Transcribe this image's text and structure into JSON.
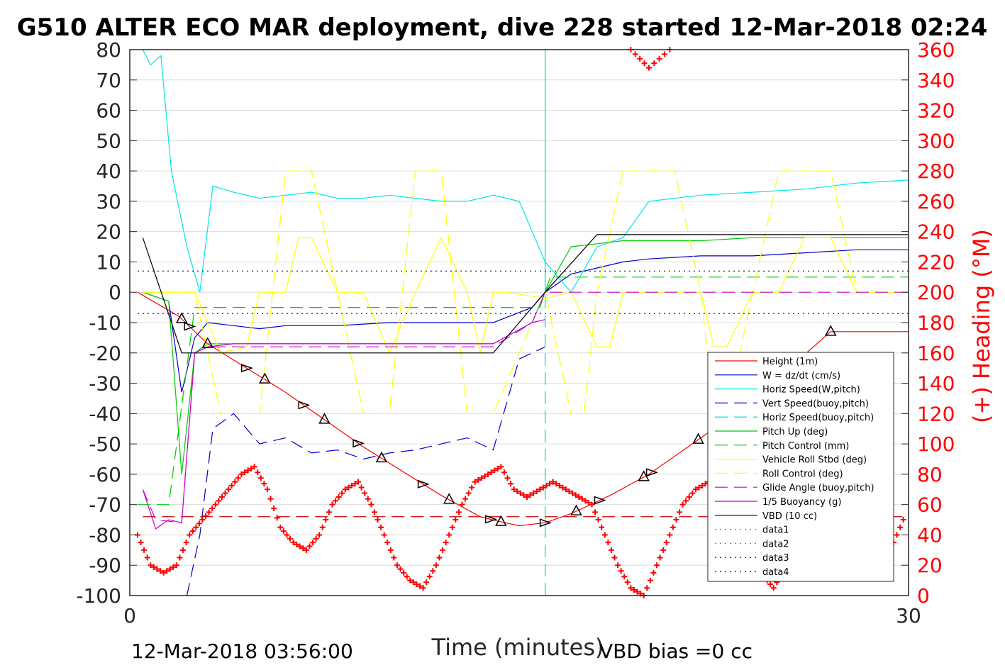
{
  "chart_data": {
    "type": "line",
    "title": "G510 ALTER ECO MAR deployment, dive 228 started 12-Mar-2018 02:24",
    "xlabel": "Time (minutes)",
    "ylabel": "",
    "ylabel_right": "(+) Heading (°M)",
    "xlim": [
      0,
      30
    ],
    "ylim": [
      -100,
      80
    ],
    "ylim_right": [
      0,
      360
    ],
    "x_ticks": [
      0,
      30
    ],
    "y_ticks": [
      80,
      70,
      60,
      50,
      40,
      30,
      20,
      10,
      0,
      -10,
      -20,
      -30,
      -40,
      -50,
      -60,
      -70,
      -80,
      -90,
      -100
    ],
    "y_ticks_right": [
      360,
      340,
      320,
      300,
      280,
      260,
      240,
      220,
      200,
      180,
      160,
      140,
      120,
      100,
      80,
      60,
      40,
      20,
      0
    ],
    "grid": true,
    "legend_position": "lower-right",
    "footer_left": "12-Mar-2018 03:56:00",
    "footer_right": "VBD bias =0 cc",
    "series": [
      {
        "name": "Height (1m)",
        "color": "#ff0000",
        "style": "solid",
        "x": [
          0.3,
          1.9,
          3.0,
          4.5,
          6.0,
          7.5,
          9.0,
          10.5,
          12.0,
          13.5,
          14.2,
          15.0,
          16.0,
          17.0,
          18.5,
          20.0,
          21.5,
          23.0,
          24.5,
          25.8,
          27.0,
          30.0
        ],
        "y": [
          0,
          -8,
          -17,
          -25,
          -33,
          -42,
          -51,
          -59,
          -67,
          -74,
          -75.5,
          -77,
          -76,
          -73,
          -67,
          -60,
          -51,
          -42,
          -32,
          -22,
          -13,
          -13
        ]
      },
      {
        "name": "W = dz/dt (cm/s)",
        "color": "#0000cc",
        "style": "solid",
        "x": [
          0.5,
          1.5,
          2.0,
          2.5,
          3.0,
          4.0,
          5.0,
          6.0,
          8.0,
          10.0,
          12.0,
          14.0,
          15.5,
          16.0,
          17.0,
          18.0,
          19.0,
          20.0,
          22.0,
          24.0,
          26.0,
          28.0,
          30.0
        ],
        "y": [
          0,
          -3,
          -33,
          -15,
          -10,
          -11,
          -12,
          -11,
          -11,
          -10,
          -10,
          -10,
          -5,
          0,
          6,
          8,
          10,
          11,
          12,
          12,
          13,
          14,
          14
        ]
      },
      {
        "name": "Horiz Speed(W,pitch)",
        "color": "#00e6e6",
        "style": "solid",
        "x": [
          0.5,
          0.8,
          1.2,
          1.6,
          2.2,
          2.7,
          3.2,
          4.0,
          5.0,
          6.0,
          7.0,
          8.0,
          9.0,
          10.0,
          11.0,
          12.0,
          13.0,
          14.0,
          15.0,
          15.5,
          16.0,
          17.0,
          18.0,
          19.0,
          20.0,
          22.0,
          24.0,
          26.0,
          28.0,
          30.0
        ],
        "y": [
          80,
          75,
          78,
          40,
          15,
          0,
          35,
          33,
          31,
          32,
          33,
          31,
          31,
          32,
          31,
          30,
          30,
          32,
          30,
          20,
          10,
          0,
          15,
          18,
          30,
          32,
          33,
          34,
          36,
          37
        ]
      },
      {
        "name": "Vert Speed(buoy,pitch)",
        "color": "#0000cc",
        "style": "dashed",
        "x": [
          2.2,
          2.7,
          3.2,
          4.0,
          5.0,
          6.0,
          7.0,
          8.0,
          9.0,
          10.0,
          11.0,
          12.0,
          13.0,
          14.0,
          15.0,
          15.5,
          16.0
        ],
        "y": [
          -100,
          -80,
          -45,
          -40,
          -50,
          -48,
          -53,
          -52,
          -55,
          -53,
          -52,
          -50,
          -48,
          -52,
          -22,
          -20,
          -18
        ]
      },
      {
        "name": "Horiz Speed(buoy,pitch)",
        "color": "#00cccc",
        "style": "dashed",
        "x": [
          16.0,
          16.0,
          16.0
        ],
        "y": [
          -100,
          80,
          0
        ]
      },
      {
        "name": "Pitch Up (deg)",
        "color": "#00cc00",
        "style": "solid",
        "x": [
          0.5,
          1.5,
          2.0,
          2.5,
          3.0,
          4.0,
          6.0,
          8.0,
          10.0,
          12.0,
          14.0,
          15.5,
          16.0,
          17.0,
          18.0,
          19.0,
          20.0,
          22.0,
          24.0,
          26.0,
          28.0,
          30.0
        ],
        "y": [
          0,
          -3,
          -60,
          -20,
          -17,
          -17,
          -17,
          -17,
          -17,
          -17,
          -17,
          -10,
          0,
          15,
          16,
          17,
          17,
          17,
          18,
          18,
          18,
          18
        ]
      },
      {
        "name": "Pitch Control (mm)",
        "color": "#00cc00",
        "style": "dashed",
        "x": [
          0.3,
          1.5,
          2.5,
          3.0,
          5.0,
          10.0,
          15.0,
          15.8,
          16.2,
          20.0,
          25.0,
          30.0
        ],
        "y": [
          -70,
          -70,
          -5,
          -5,
          -5,
          -5,
          -5,
          -5,
          5,
          5,
          5,
          5
        ]
      },
      {
        "name": "Vehicle Roll Stbd (deg)",
        "color": "#ffff00",
        "style": "solid",
        "x": [
          0.5,
          2.0,
          2.5,
          3.5,
          4.5,
          5.0,
          6.0,
          6.5,
          7.0,
          8.0,
          9.0,
          10.0,
          11.0,
          12.0,
          13.0,
          13.5,
          14.0,
          14.5,
          16.0,
          17.0,
          18.0,
          18.5,
          19.0,
          22.0,
          22.5,
          23.0,
          24.0,
          25.0,
          26.0,
          27.0,
          28.0,
          30.0
        ],
        "y": [
          0,
          0,
          0,
          -20,
          -18,
          0,
          0,
          18,
          18,
          0,
          0,
          -20,
          0,
          18,
          0,
          -20,
          0,
          0,
          -2,
          0,
          -18,
          -18,
          0,
          0,
          -18,
          -18,
          0,
          0,
          18,
          18,
          0,
          0
        ]
      },
      {
        "name": "Roll Control (deg)",
        "color": "#ffff00",
        "style": "dashed",
        "x": [
          0.5,
          2.5,
          3.5,
          4.0,
          5.0,
          5.5,
          6.0,
          7.0,
          8.0,
          9.0,
          10.0,
          11.0,
          12.0,
          13.0,
          14.0,
          16.0,
          17.0,
          17.5,
          18.0,
          19.0,
          20.0,
          21.0,
          22.0,
          22.5,
          23.0,
          24.0,
          25.0,
          26.0,
          27.0,
          28.0,
          30.0
        ],
        "y": [
          0,
          0,
          -40,
          -40,
          -40,
          0,
          40,
          40,
          0,
          -40,
          -40,
          40,
          40,
          -40,
          -40,
          0,
          -40,
          -40,
          0,
          40,
          40,
          40,
          0,
          -40,
          -40,
          0,
          40,
          40,
          40,
          0,
          0
        ]
      },
      {
        "name": "Glide Angle (buoy,pitch)",
        "color": "#cc00cc",
        "style": "dashed",
        "x": [
          0.5,
          1.0,
          2.0,
          2.5,
          3.0,
          4.0,
          6.0,
          8.0,
          10.0,
          12.0,
          14.0,
          15.5,
          16.0,
          18.0,
          20.0,
          25.0,
          30.0
        ],
        "y": [
          -65,
          -75,
          -76,
          -20,
          -18,
          -18,
          -18,
          -18,
          -18,
          -18,
          -18,
          -10,
          0,
          0,
          0,
          0,
          0
        ]
      },
      {
        "name": "1/5 Buoyancy (g)",
        "color": "#cc00cc",
        "style": "solid",
        "x": [
          0.5,
          1.0,
          1.5,
          2.0,
          2.5,
          3.0,
          4.0,
          6.0,
          8.0,
          10.0,
          12.0,
          14.0,
          15.5,
          16.0
        ],
        "y": [
          -65,
          -78,
          -75,
          -76,
          -20,
          -18,
          -17,
          -17,
          -17,
          -17,
          -17,
          -17,
          -10,
          -9
        ]
      },
      {
        "name": "VBD (10 cc)",
        "color": "#000000",
        "style": "solid",
        "x": [
          0.5,
          2.0,
          14.0,
          16.0,
          18.0,
          20.0,
          25.0,
          30.0
        ],
        "y": [
          18,
          -20,
          -20,
          0,
          19,
          19,
          19,
          19
        ]
      },
      {
        "name": "data1",
        "color": "#00cc00",
        "style": "dotted",
        "x": [],
        "y": []
      },
      {
        "name": "data2",
        "color": "#00cc00",
        "style": "dotted",
        "x": [],
        "y": []
      },
      {
        "name": "data3",
        "color": "#000080",
        "style": "dotted",
        "x": [
          0.3,
          30.0
        ],
        "y": [
          7,
          7
        ]
      },
      {
        "name": "data4",
        "color": "#000080",
        "style": "dotted",
        "x": [
          0.3,
          30.0
        ],
        "y": [
          -7,
          -7
        ]
      }
    ],
    "heading": {
      "marker": "+",
      "color": "#ff0000",
      "axis": "right",
      "x": [
        0.3,
        0.8,
        1.3,
        1.8,
        2.3,
        2.8,
        3.3,
        3.8,
        4.3,
        4.8,
        5.3,
        5.8,
        6.3,
        6.8,
        7.3,
        7.8,
        8.3,
        8.8,
        9.3,
        9.8,
        10.3,
        10.8,
        11.3,
        11.8,
        12.3,
        12.8,
        13.3,
        13.8,
        14.3,
        14.8,
        15.3,
        15.8,
        16.3,
        16.8,
        17.3,
        17.8,
        18.3,
        18.8,
        19.3,
        19.8,
        20.3,
        20.8,
        21.3,
        21.8,
        22.3,
        22.8,
        23.3,
        23.8,
        24.3,
        24.8,
        25.3,
        25.8,
        26.3,
        26.8,
        27.3,
        27.8,
        28.3,
        28.8,
        29.3,
        29.8
      ],
      "y": [
        40,
        20,
        15,
        20,
        40,
        50,
        60,
        70,
        80,
        85,
        70,
        45,
        35,
        30,
        40,
        60,
        70,
        75,
        60,
        40,
        20,
        10,
        5,
        20,
        40,
        60,
        75,
        80,
        85,
        70,
        65,
        70,
        75,
        70,
        65,
        60,
        40,
        20,
        5,
        0,
        20,
        40,
        60,
        70,
        75,
        65,
        50,
        30,
        15,
        5,
        20,
        45,
        60,
        65,
        50,
        30,
        20,
        15,
        30,
        50
      ]
    },
    "heading_top_excursion": {
      "x": [
        19.3,
        20.0,
        20.8
      ],
      "y": [
        360,
        348,
        360
      ]
    },
    "heading_reference": {
      "value": 52,
      "color": "#cc0000",
      "style": "dashed"
    },
    "triangle_markers_x": [
      2.0,
      2.3,
      3.0,
      4.5,
      5.2,
      6.7,
      7.5,
      8.8,
      9.7,
      11.3,
      12.3,
      13.9,
      14.3,
      16.0,
      17.2,
      18.1,
      19.8,
      20.1,
      21.9,
      23.7,
      24.1,
      25.5,
      27.0
    ]
  }
}
